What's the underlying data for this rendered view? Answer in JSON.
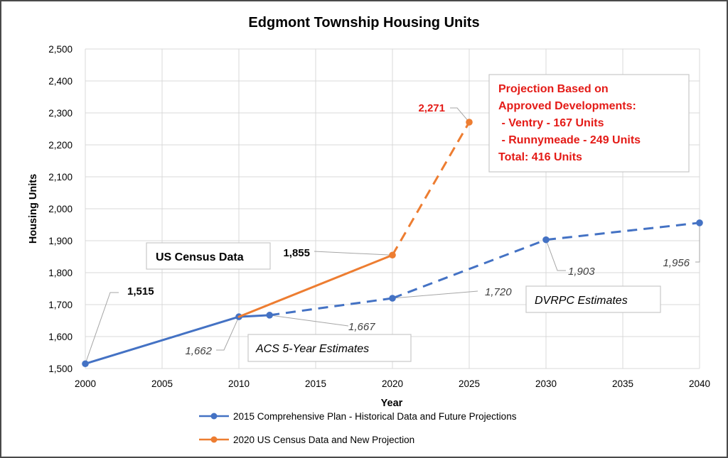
{
  "chart_data": {
    "type": "line",
    "title": "Edgmont Township Housing Units",
    "xlabel": "Year",
    "ylabel": "Housing Units",
    "xlim": [
      2000,
      2040
    ],
    "ylim": [
      1500,
      2500
    ],
    "x_ticks": [
      "2000",
      "2005",
      "2010",
      "2015",
      "2020",
      "2025",
      "2030",
      "2035",
      "2040"
    ],
    "x_tick_values": [
      2000,
      2005,
      2010,
      2015,
      2020,
      2025,
      2030,
      2035,
      2040
    ],
    "y_ticks": [
      "1,500",
      "1,600",
      "1,700",
      "1,800",
      "1,900",
      "2,000",
      "2,100",
      "2,200",
      "2,300",
      "2,400",
      "2,500"
    ],
    "y_tick_values": [
      1500,
      1600,
      1700,
      1800,
      1900,
      2000,
      2100,
      2200,
      2300,
      2400,
      2500
    ],
    "grid": true,
    "legend_position": "bottom",
    "series": [
      {
        "name": "2015 Comprehensive Plan - Historical Data and Future Projections",
        "color": "#4472c4",
        "x": [
          2000,
          2010,
          2012,
          2020,
          2030,
          2040
        ],
        "values": [
          1515,
          1662,
          1667,
          1720,
          1903,
          1956
        ],
        "labels": [
          "1,515",
          "1,662",
          "1,667",
          "1,720",
          "1,903",
          "1,956"
        ],
        "dashed_from_index": 2
      },
      {
        "name": "2020 US Census Data and New Projection",
        "color": "#ed7d31",
        "x": [
          2010,
          2020,
          2025
        ],
        "values": [
          1662,
          1855,
          2271
        ],
        "labels": [
          "",
          "1,855",
          "2,271"
        ],
        "dashed_from_index": 1
      }
    ],
    "annotations": {
      "census": "US Census Data",
      "acs": "ACS 5-Year Estimates",
      "dvrpc": "DVRPC Estimates",
      "projection_lines": [
        "Projection Based on",
        "Approved Developments:",
        " - Ventry - 167 Units",
        " - Runnymeade - 249 Units",
        "Total: 416 Units"
      ],
      "projection_color": "#e41b17"
    }
  }
}
